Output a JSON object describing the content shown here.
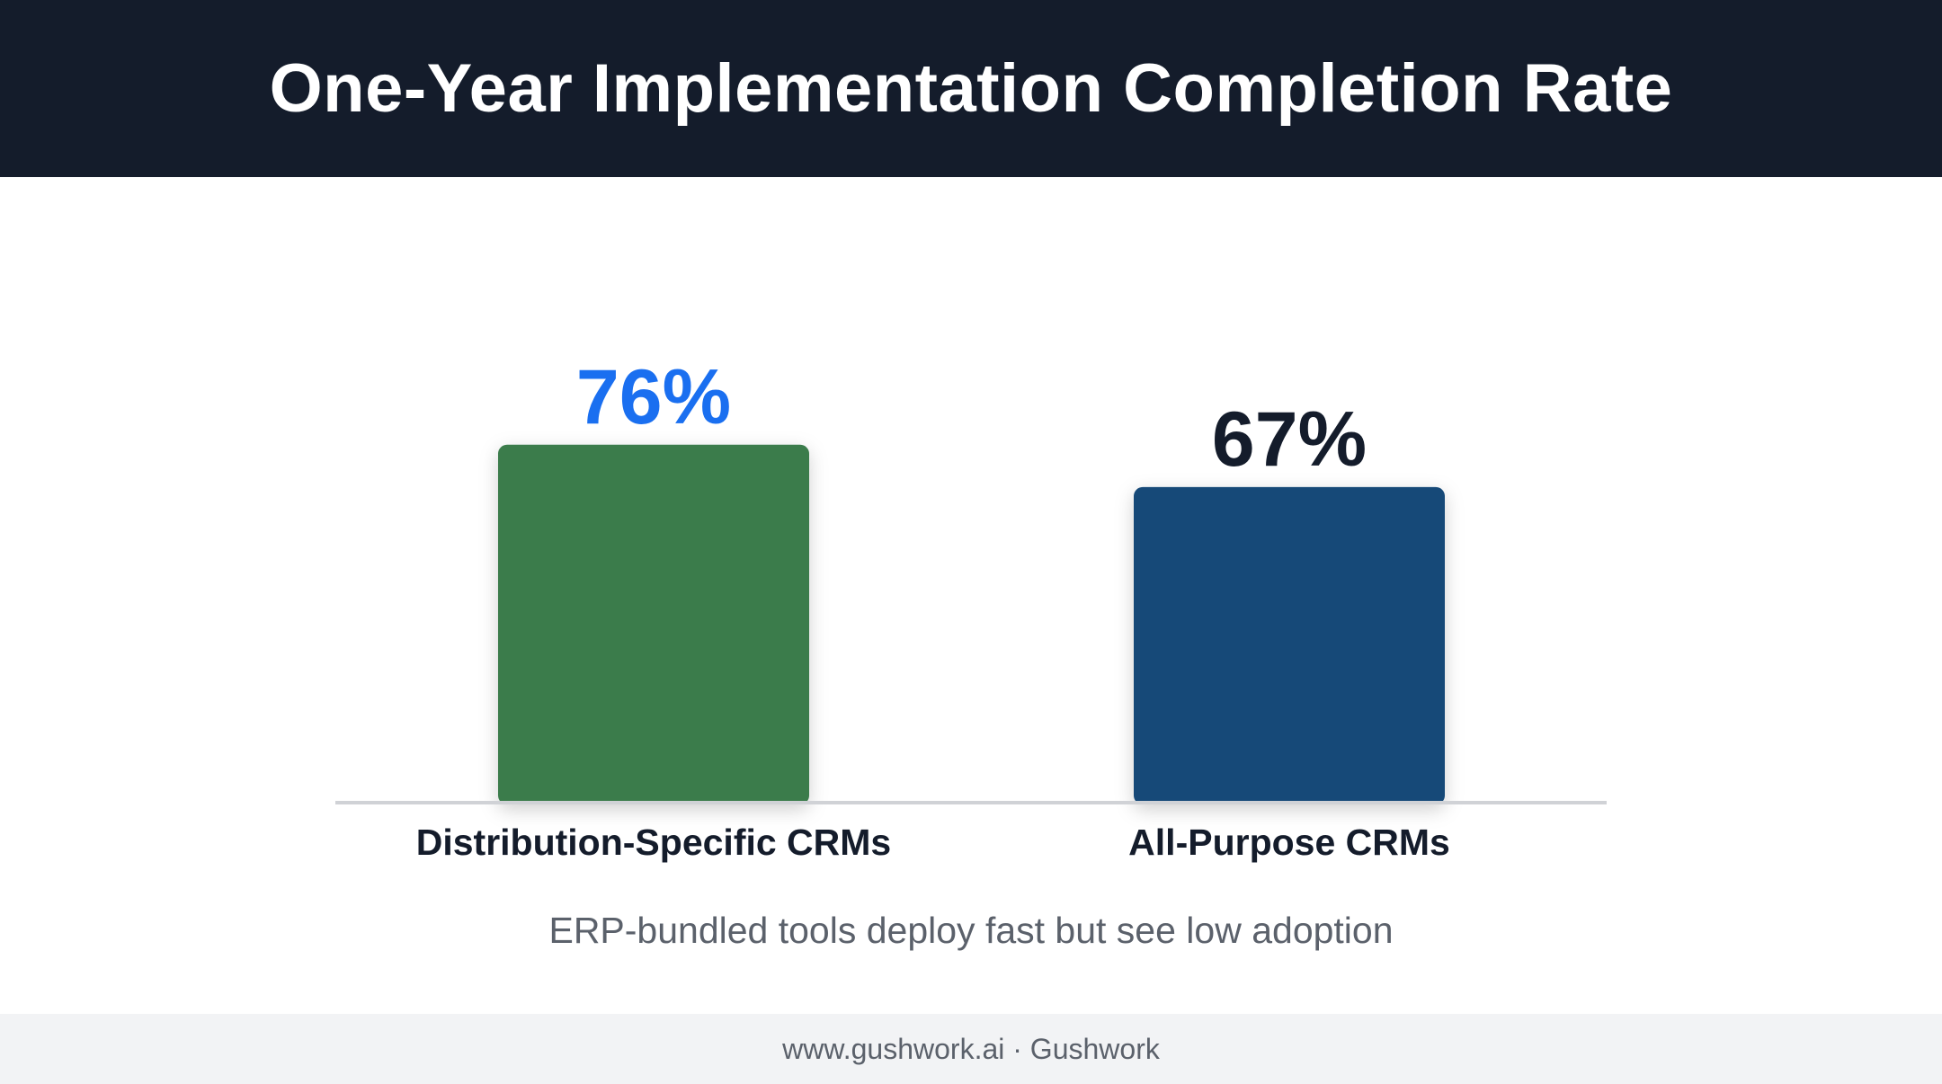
{
  "header": {
    "title": "One-Year Implementation Completion Rate"
  },
  "chart_data": {
    "type": "bar",
    "title": "One-Year Implementation Completion Rate",
    "categories": [
      "Distribution-Specific CRMs",
      "All-Purpose CRMs"
    ],
    "values": [
      76,
      67
    ],
    "value_labels": [
      "76%",
      "67%"
    ],
    "unit": "%",
    "ylim": [
      0,
      100
    ],
    "xlabel": "",
    "ylabel": "",
    "grid": false,
    "legend": "none",
    "bar_colors": [
      "#3a7b4c",
      "#144878"
    ],
    "value_label_colors": [
      "#1a6ff0",
      "#141c2b"
    ]
  },
  "subtitle": "ERP-bundled tools deploy fast but see low adoption",
  "footer": {
    "text": "www.gushwork.ai · Gushwork"
  },
  "colors": {
    "header_bg": "#141c2b",
    "header_text": "#ffffff",
    "baseline": "#d0d2d6",
    "category_text": "#141c2b",
    "subtitle_text": "#5b616b",
    "footer_bg": "#f2f3f5"
  }
}
